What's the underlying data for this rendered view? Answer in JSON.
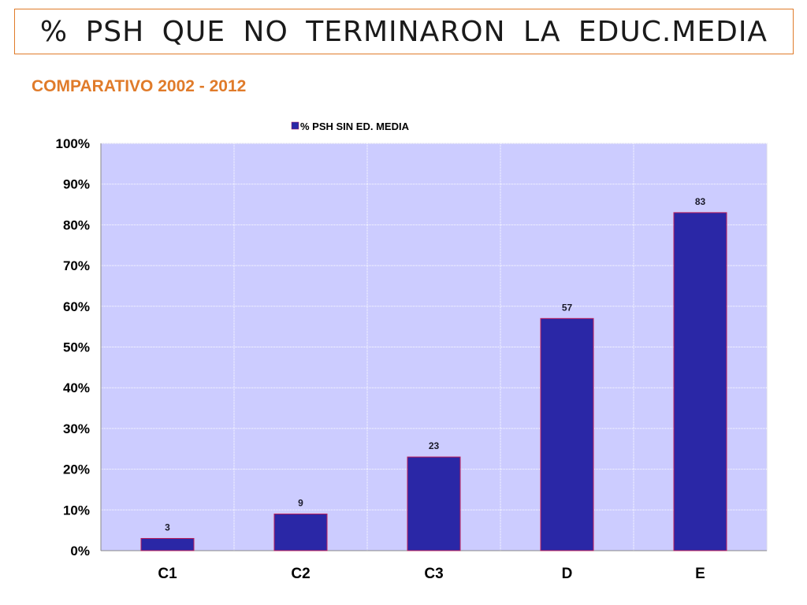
{
  "header": {
    "title": "% PSH  QUE  NO  TERMINARON  LA  EDUC.MEDIA",
    "subtitle": "COMPARATIVO 2002 - 2012"
  },
  "colors": {
    "accent": "#e07b2a",
    "plot_bg": "#ccccff",
    "bar_fill": "#2a27a6",
    "bar_border": "#c0205a",
    "gridline": "#ffffff"
  },
  "chart_data": {
    "type": "bar",
    "categories": [
      "C1",
      "C2",
      "C3",
      "D",
      "E"
    ],
    "series": [
      {
        "name": "% PSH SIN ED. MEDIA",
        "values": [
          3,
          9,
          23,
          57,
          83
        ]
      }
    ],
    "data_labels": [
      "3",
      "9",
      "23",
      "57",
      "83"
    ],
    "yticks": [
      "0%",
      "10%",
      "20%",
      "30%",
      "40%",
      "50%",
      "60%",
      "70%",
      "80%",
      "90%",
      "100%"
    ],
    "ylim": [
      0,
      100
    ],
    "legend_position": "top-center",
    "grid": true
  }
}
